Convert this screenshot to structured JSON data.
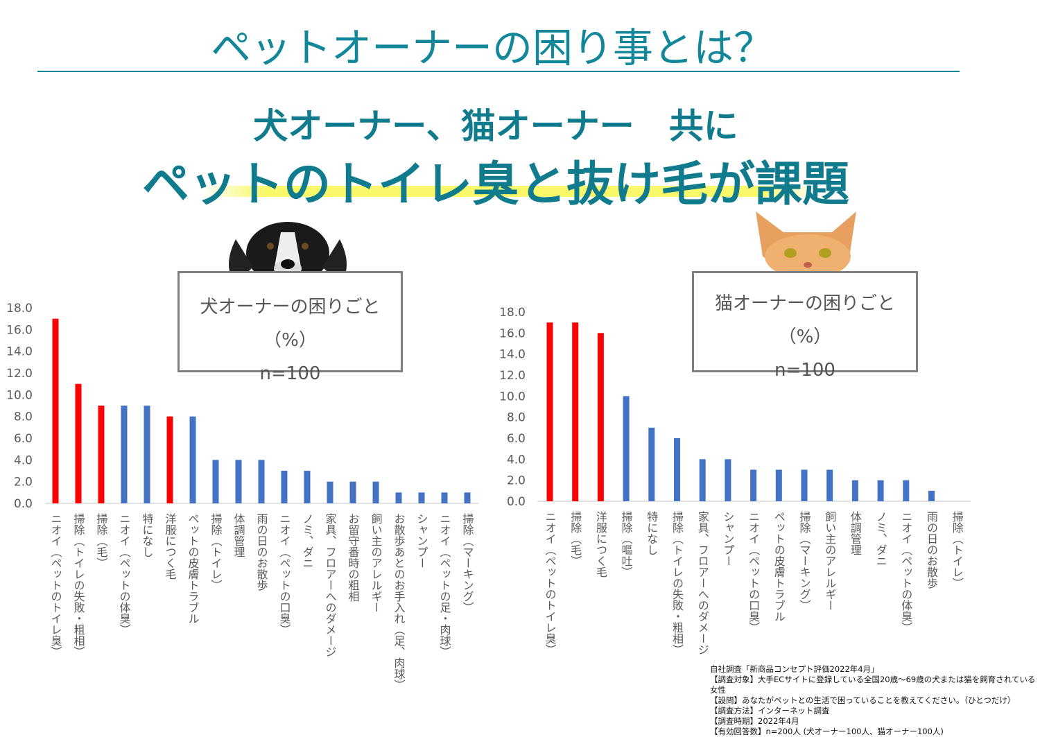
{
  "header": {
    "title": "ペットオーナーの困り事とは？",
    "subtitle1": "犬オーナー、猫オーナー　共に",
    "subtitle2": "ペットのトイレ臭と抜け毛が課題"
  },
  "colors": {
    "highlight": "#ff0000",
    "normal": "#4472c4",
    "accent": "#12879a"
  },
  "chart_data": [
    {
      "type": "bar",
      "title": "犬オーナーの困りごと（%）",
      "n_label": "n=100",
      "ylim": [
        0,
        18
      ],
      "yticks": [
        "0.0",
        "2.0",
        "4.0",
        "6.0",
        "8.0",
        "10.0",
        "12.0",
        "14.0",
        "16.0",
        "18.0"
      ],
      "categories": [
        "ニオイ（ペットのトイレ臭）",
        "掃除（トイレの失敗・粗相）",
        "掃除（毛）",
        "ニオイ（ペットの体臭）",
        "特になし",
        "洋服につく毛",
        "ペットの皮膚トラブル",
        "掃除（トイレ）",
        "体調管理",
        "雨の日のお散歩",
        "ニオイ（ペットの口臭）",
        "ノミ、ダニ",
        "家具、フロアーへのダメージ",
        "お留守番時の粗相",
        "飼い主のアレルギー",
        "お散歩あとのお手入れ（足、肉球）",
        "シャンプー",
        "ニオイ（ペットの足・肉球）",
        "掃除（マーキング）"
      ],
      "values": [
        17,
        11,
        9,
        9,
        9,
        8,
        8,
        4,
        4,
        4,
        3,
        3,
        2,
        2,
        2,
        1,
        1,
        1,
        1
      ],
      "highlighted": [
        0,
        1,
        2,
        5
      ]
    },
    {
      "type": "bar",
      "title": "猫オーナーの困りごと（%）",
      "n_label": "n=100",
      "ylim": [
        0,
        18
      ],
      "yticks": [
        "0.0",
        "2.0",
        "4.0",
        "6.0",
        "8.0",
        "10.0",
        "12.0",
        "14.0",
        "16.0",
        "18.0"
      ],
      "categories": [
        "ニオイ（ペットのトイレ臭）",
        "掃除（毛）",
        "洋服につく毛",
        "掃除（嘔吐）",
        "特になし",
        "掃除（トイレの失敗・粗相）",
        "家具、フロアーへのダメージ",
        "シャンプー",
        "ニオイ（ペットの口臭）",
        "ペットの皮膚トラブル",
        "掃除（マーキング）",
        "飼い主のアレルギー",
        "体調管理",
        "ノミ、ダニ",
        "ニオイ（ペットの体臭）",
        "雨の日のお散歩",
        "掃除（トイレ）"
      ],
      "values": [
        17,
        17,
        16,
        10,
        7,
        6,
        4,
        4,
        3,
        3,
        3,
        3,
        2,
        2,
        2,
        1,
        0
      ],
      "highlighted": [
        0,
        1,
        2
      ]
    }
  ],
  "notes": [
    "自社調査「新商品コンセプト評価2022年4月」",
    "【調査対象】大手ECサイトに登録している全国20歳～69歳の犬または猫を飼育されている女性",
    "【設問】あなたがペットとの生活で困っていることを教えてください。（ひとつだけ）",
    "【調査方法】インターネット調査",
    "【調査時期】2022年4月",
    "【有効回答数】n=200人 (犬オーナー100人、猫オーナー100人)"
  ]
}
